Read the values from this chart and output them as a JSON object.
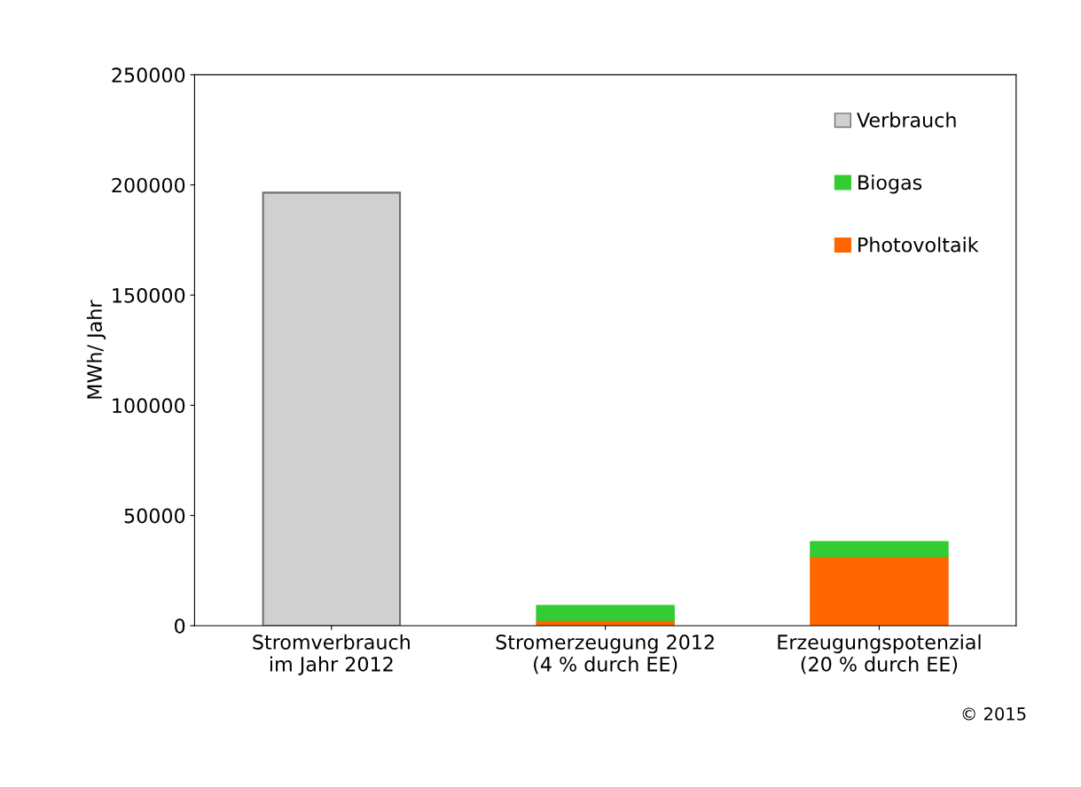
{
  "chart_data": {
    "type": "bar",
    "stacked": true,
    "ylabel": "MWh/ Jahr",
    "categories": [
      "Stromverbrauch\nim Jahr 2012",
      "Stromerzeugung 2012\n(4 % durch EE)",
      "Erzeugungspotenzial\n(20 % durch EE)"
    ],
    "series": [
      {
        "name": "Photovoltaik",
        "color": "#ff6600",
        "values": [
          null,
          2500,
          31500
        ]
      },
      {
        "name": "Biogas",
        "color": "#33cc33",
        "values": [
          null,
          6500,
          6500
        ]
      },
      {
        "name": "Verbrauch",
        "color": "#d0d0d0",
        "values": [
          196500,
          null,
          null
        ]
      }
    ],
    "ylim": [
      0,
      250000
    ],
    "yticks": [
      0,
      50000,
      100000,
      150000,
      200000,
      250000
    ],
    "grid": false,
    "legend": "top right",
    "annotations": [
      "© 2015"
    ]
  }
}
